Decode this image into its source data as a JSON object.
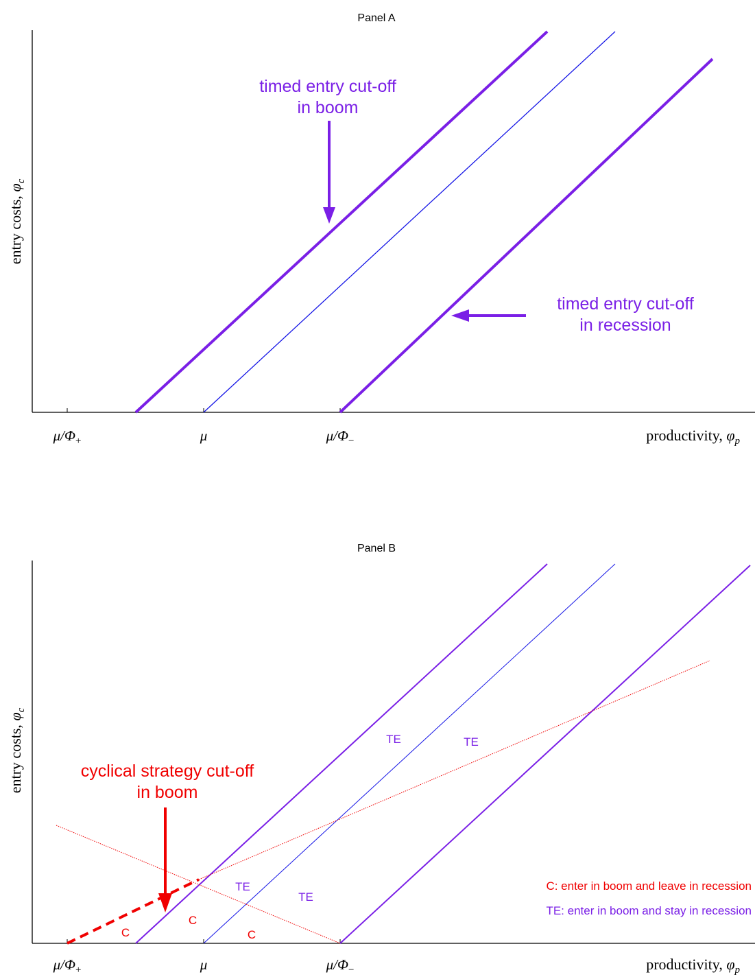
{
  "panel_a": {
    "title": "Panel A",
    "y_axis_label": "entry costs, ",
    "y_axis_symbol": "φ",
    "y_axis_subscript": "c",
    "x_axis_label": "productivity, ",
    "x_axis_symbol": "φ",
    "x_axis_subscript": "p",
    "ticks": [
      {
        "base": "μ/Φ",
        "sub": "+"
      },
      {
        "base": "μ",
        "sub": ""
      },
      {
        "base": "μ/Φ",
        "sub": "−"
      }
    ],
    "annotation_boom": [
      "timed entry cut-off",
      "in boom"
    ],
    "annotation_recession": [
      "timed entry cut-off",
      "in recession"
    ]
  },
  "panel_b": {
    "title": "Panel B",
    "y_axis_label": "entry costs, ",
    "y_axis_symbol": "φ",
    "y_axis_subscript": "c",
    "x_axis_label": "productivity, ",
    "x_axis_symbol": "φ",
    "x_axis_subscript": "p",
    "ticks": [
      {
        "base": "μ/Φ",
        "sub": "+"
      },
      {
        "base": "μ",
        "sub": ""
      },
      {
        "base": "μ/Φ",
        "sub": "−"
      }
    ],
    "annotation_cyclical": [
      "cyclical strategy cut-off",
      "in boom"
    ],
    "region_labels": {
      "c": "C",
      "te": "TE"
    },
    "legend": {
      "c": "C: enter in boom and leave in recession",
      "te": "TE: enter in boom and stay in recession"
    }
  },
  "colors": {
    "purple": "#7a1fe6",
    "blue": "#1414e6",
    "red": "#f00000",
    "axis": "#000000"
  }
}
